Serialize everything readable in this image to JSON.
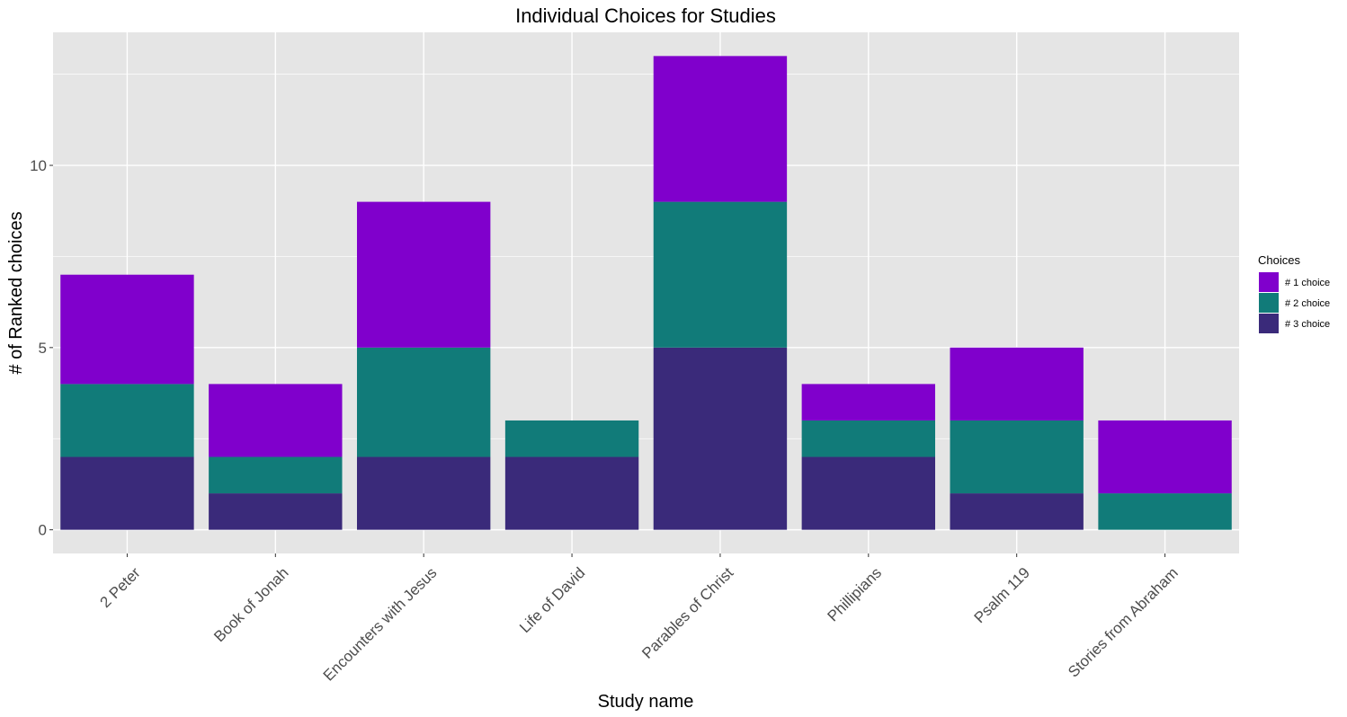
{
  "chart_data": {
    "type": "bar",
    "stacked": true,
    "title": "Individual Choices for Studies",
    "xlabel": "Study name",
    "ylabel": "# of Ranked choices",
    "categories": [
      "2 Peter",
      "Book of Jonah",
      "Encounters with Jesus",
      "Life of David",
      "Parables of Christ",
      "Phillipians",
      "Psalm 119",
      "Stories from Abraham"
    ],
    "series": [
      {
        "name": "# 3 choice",
        "color": "#3a2a7a",
        "values": [
          2,
          1,
          2,
          2,
          5,
          2,
          1,
          0
        ]
      },
      {
        "name": "# 2 choice",
        "color": "#117b79",
        "values": [
          2,
          1,
          3,
          1,
          4,
          1,
          2,
          1
        ]
      },
      {
        "name": "# 1 choice",
        "color": "#8000cc",
        "values": [
          3,
          2,
          4,
          0,
          4,
          1,
          2,
          2
        ]
      }
    ],
    "ylim": [
      -0.65,
      13.65
    ],
    "yticks": [
      0,
      5,
      10
    ],
    "legend": {
      "title": "Choices",
      "position": "right",
      "order": [
        "# 1 choice",
        "# 2 choice",
        "# 3 choice"
      ]
    },
    "grid": true,
    "panel_background": "#e5e5e5",
    "grid_color": "#ffffff"
  }
}
